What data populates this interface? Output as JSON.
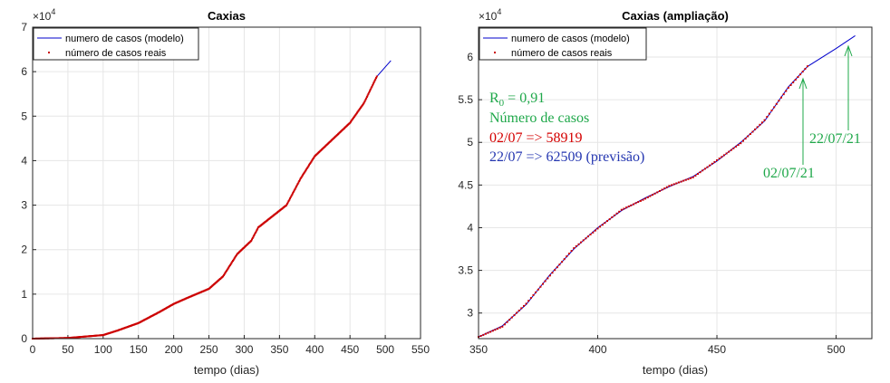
{
  "chart_data": [
    {
      "type": "line",
      "title": "Caxias",
      "xlabel": "tempo (dias)",
      "ylabel": "",
      "xlim": [
        0,
        550
      ],
      "ylim": [
        0,
        70000
      ],
      "x_ticks": [
        "0",
        "50",
        "100",
        "150",
        "200",
        "250",
        "300",
        "350",
        "400",
        "450",
        "500",
        "550"
      ],
      "y_ticks": [
        "0",
        "1",
        "2",
        "3",
        "4",
        "5",
        "6",
        "7"
      ],
      "y_exponent_base": "×10",
      "y_exponent_power": "4",
      "grid": true,
      "legend": "top-left",
      "series": [
        {
          "name": "numero de casos (modelo)",
          "style": "line",
          "color": "#0000cc",
          "points": [
            [
              0,
              0
            ],
            [
              50,
              150
            ],
            [
              100,
              800
            ],
            [
              120,
              1800
            ],
            [
              150,
              3500
            ],
            [
              180,
              6000
            ],
            [
              200,
              7800
            ],
            [
              220,
              9200
            ],
            [
              250,
              11200
            ],
            [
              270,
              14000
            ],
            [
              290,
              19000
            ],
            [
              310,
              22000
            ],
            [
              320,
              25000
            ],
            [
              340,
              27500
            ],
            [
              360,
              30000
            ],
            [
              380,
              36000
            ],
            [
              400,
              41000
            ],
            [
              420,
              44000
            ],
            [
              450,
              48500
            ],
            [
              470,
              53000
            ],
            [
              488,
              58900
            ],
            [
              508,
              62500
            ]
          ]
        },
        {
          "name": "número de casos reais",
          "style": "dots",
          "color": "#cc0000",
          "points": [
            [
              0,
              0
            ],
            [
              50,
              150
            ],
            [
              100,
              800
            ],
            [
              120,
              1800
            ],
            [
              150,
              3500
            ],
            [
              180,
              6000
            ],
            [
              200,
              7800
            ],
            [
              220,
              9200
            ],
            [
              250,
              11200
            ],
            [
              270,
              14000
            ],
            [
              290,
              19000
            ],
            [
              310,
              22000
            ],
            [
              320,
              25000
            ],
            [
              340,
              27500
            ],
            [
              360,
              30000
            ],
            [
              380,
              36000
            ],
            [
              400,
              41000
            ],
            [
              420,
              44000
            ],
            [
              450,
              48500
            ],
            [
              470,
              53000
            ],
            [
              488,
              58919
            ]
          ]
        }
      ]
    },
    {
      "type": "line",
      "title": "Caxias (ampliação)",
      "xlabel": "tempo (dias)",
      "ylabel": "",
      "xlim": [
        350,
        515
      ],
      "ylim": [
        27000,
        63500
      ],
      "x_ticks": [
        "350",
        "400",
        "450",
        "500"
      ],
      "y_ticks": [
        "3",
        "3.5",
        "4",
        "4.5",
        "5",
        "5.5",
        "6"
      ],
      "y_exponent_base": "×10",
      "y_exponent_power": "4",
      "grid": true,
      "legend": "top-left",
      "series": [
        {
          "name": "numero de casos (modelo)",
          "style": "line",
          "color": "#0000cc",
          "points": [
            [
              350,
              27200
            ],
            [
              360,
              28500
            ],
            [
              370,
              31000
            ],
            [
              380,
              34500
            ],
            [
              390,
              37500
            ],
            [
              400,
              40000
            ],
            [
              410,
              42000
            ],
            [
              420,
              43500
            ],
            [
              430,
              44800
            ],
            [
              440,
              46000
            ],
            [
              450,
              47800
            ],
            [
              460,
              50000
            ],
            [
              470,
              52500
            ],
            [
              480,
              56500
            ],
            [
              488,
              58900
            ],
            [
              500,
              61000
            ],
            [
              508,
              62500
            ]
          ]
        },
        {
          "name": "número de casos reais",
          "style": "dots",
          "color": "#cc0000",
          "points": [
            [
              350,
              27200
            ],
            [
              360,
              28400
            ],
            [
              370,
              31100
            ],
            [
              380,
              34400
            ],
            [
              390,
              37600
            ],
            [
              400,
              39900
            ],
            [
              410,
              42100
            ],
            [
              420,
              43400
            ],
            [
              430,
              44900
            ],
            [
              440,
              45900
            ],
            [
              450,
              47900
            ],
            [
              460,
              49900
            ],
            [
              470,
              52600
            ],
            [
              480,
              56400
            ],
            [
              488,
              58919
            ]
          ]
        }
      ],
      "annotations": {
        "r0_base": "R",
        "r0_sub": "0",
        "r0_value": " = 0,91",
        "cases_label": "Número de casos",
        "line_actual": "02/07 => 58919",
        "line_forecast": "22/07 => 62509 (previsão)",
        "arrow_1_label": "02/07/21",
        "arrow_2_label": "22/07/21",
        "annot_green": "#1fa84a",
        "annot_red": "#d40000",
        "annot_blue": "#2436b0"
      }
    }
  ]
}
